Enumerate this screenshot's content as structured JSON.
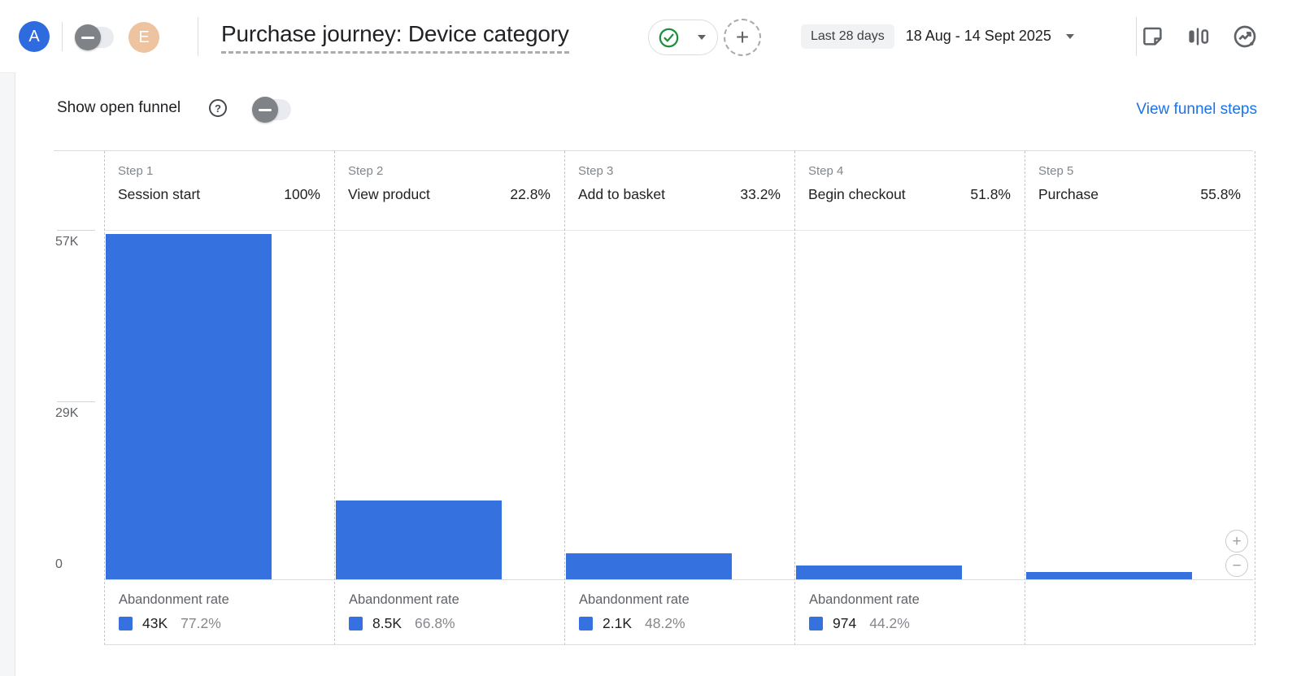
{
  "header": {
    "avatar_a_initial": "A",
    "avatar_e_initial": "E",
    "title": "Purchase journey: Device category",
    "date_range_preset": "Last 28 days",
    "date_range_value": "18 Aug - 14 Sept 2025",
    "add_button_glyph": "+"
  },
  "controls": {
    "show_open_funnel": "Show open funnel",
    "help_glyph": "?",
    "view_funnel_steps": "View funnel steps"
  },
  "zoom_controls": {
    "zoom_in": "+",
    "zoom_out": "−"
  },
  "colors": {
    "bar_blue": "#3572e0",
    "link_blue": "#1a73e8",
    "avatar_a_bg": "#2e6bdf",
    "avatar_e_bg": "#eec3a0",
    "check_green": "#1e8e3e"
  },
  "chart_data": {
    "type": "bar",
    "title": "Purchase journey: Device category",
    "legend_position": "none",
    "grid": "top-line-only",
    "y_axis": {
      "max": 57000,
      "ticks": [
        "57K",
        "29K",
        "0"
      ]
    },
    "bar_color": "#3572e0",
    "steps": [
      {
        "step_label": "Step 1",
        "name": "Session start",
        "completion_rate": "100%",
        "value_estimate": 56400,
        "abandonment_label": "Abandonment rate",
        "abandonment_value": "43K",
        "abandonment_rate": "77.2%"
      },
      {
        "step_label": "Step 2",
        "name": "View product",
        "completion_rate": "22.8%",
        "value_estimate": 12800,
        "abandonment_label": "Abandonment rate",
        "abandonment_value": "8.5K",
        "abandonment_rate": "66.8%"
      },
      {
        "step_label": "Step 3",
        "name": "Add to basket",
        "completion_rate": "33.2%",
        "value_estimate": 4300,
        "abandonment_label": "Abandonment rate",
        "abandonment_value": "2.1K",
        "abandonment_rate": "48.2%"
      },
      {
        "step_label": "Step 4",
        "name": "Begin checkout",
        "completion_rate": "51.8%",
        "value_estimate": 2200,
        "abandonment_label": "Abandonment rate",
        "abandonment_value": "974",
        "abandonment_rate": "44.2%"
      },
      {
        "step_label": "Step 5",
        "name": "Purchase",
        "completion_rate": "55.8%",
        "value_estimate": 1230
      }
    ]
  }
}
